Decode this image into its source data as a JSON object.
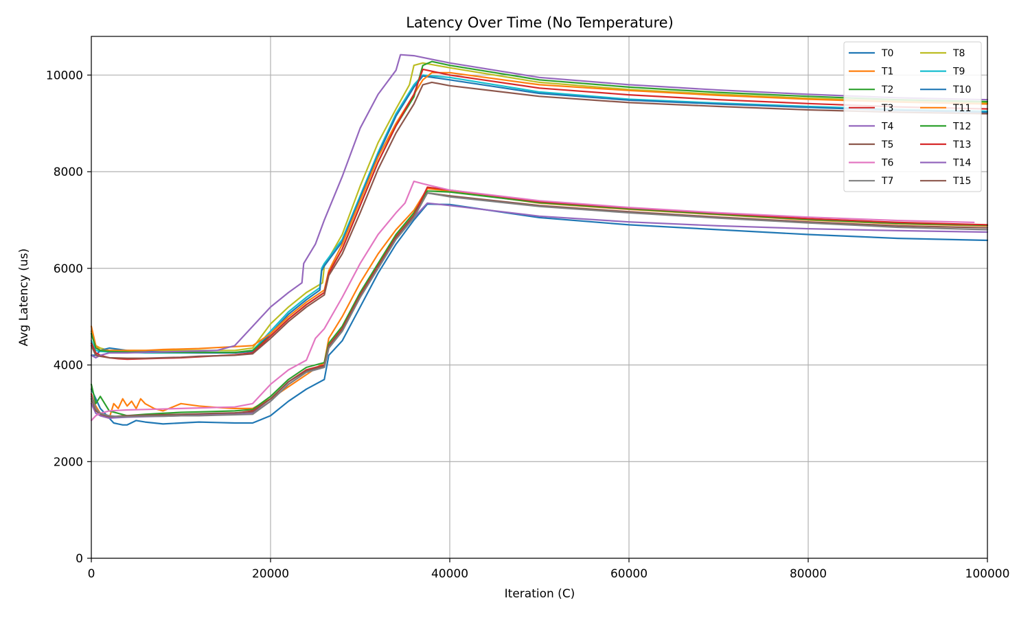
{
  "chart_data": {
    "type": "line",
    "title": "Latency Over Time (No Temperature)",
    "xlabel": "Iteration (C)",
    "ylabel": "Avg Latency (us)",
    "xlim": [
      0,
      100000
    ],
    "ylim": [
      0,
      10800
    ],
    "xticks": [
      0,
      20000,
      40000,
      60000,
      80000,
      100000
    ],
    "yticks": [
      0,
      2000,
      4000,
      6000,
      8000,
      10000
    ],
    "grid": true,
    "legend": {
      "placement": "upper-right",
      "columns": 2
    },
    "colors": {
      "T0": "#1f77b4",
      "T1": "#ff7f0e",
      "T2": "#2ca02c",
      "T3": "#d62728",
      "T4": "#9467bd",
      "T5": "#8c564b",
      "T6": "#e377c2",
      "T7": "#7f7f7f",
      "T8": "#bcbd22",
      "T9": "#17becf",
      "T10": "#1f77b4",
      "T11": "#ff7f0e",
      "T12": "#2ca02c",
      "T13": "#d62728",
      "T14": "#9467bd",
      "T15": "#8c564b"
    },
    "series": [
      {
        "name": "T0",
        "x": [
          0,
          1000,
          2000,
          2500,
          3000,
          3500,
          4000,
          5000,
          6000,
          8000,
          10000,
          12000,
          14000,
          16000,
          18000,
          20000,
          22000,
          24000,
          26000,
          26500,
          28000,
          30000,
          32000,
          34000,
          36000,
          37500,
          40000,
          50000,
          60000,
          70000,
          80000,
          90000,
          100000
        ],
        "y": [
          3500,
          3100,
          2900,
          2800,
          2780,
          2760,
          2760,
          2850,
          2820,
          2780,
          2800,
          2820,
          2810,
          2800,
          2800,
          2950,
          3250,
          3500,
          3700,
          4200,
          4500,
          5200,
          5900,
          6500,
          7000,
          7330,
          7320,
          7050,
          6900,
          6800,
          6700,
          6620,
          6580
        ]
      },
      {
        "name": "T1",
        "x": [
          0,
          1000,
          2000,
          2500,
          3000,
          3500,
          4000,
          4500,
          5000,
          5500,
          6000,
          7000,
          8000,
          10000,
          12000,
          14000,
          16000,
          18000,
          20000,
          22000,
          24000,
          26000,
          26500,
          28000,
          30000,
          32000,
          34000,
          36000,
          37500,
          40000,
          50000,
          60000,
          70000,
          80000,
          90000,
          100000
        ],
        "y": [
          3300,
          3000,
          2900,
          3200,
          3100,
          3300,
          3150,
          3250,
          3100,
          3300,
          3200,
          3100,
          3050,
          3200,
          3150,
          3120,
          3100,
          3100,
          3300,
          3550,
          3800,
          4050,
          4550,
          5000,
          5700,
          6300,
          6800,
          7200,
          7650,
          7600,
          7350,
          7220,
          7110,
          7000,
          6920,
          6880
        ]
      },
      {
        "name": "T2",
        "x": [
          0,
          500,
          1000,
          2000,
          3000,
          4000,
          6000,
          8000,
          10000,
          12000,
          14000,
          16000,
          18000,
          20000,
          22000,
          24000,
          26000,
          26500,
          28000,
          30000,
          32000,
          34000,
          36000,
          37500,
          40000,
          50000,
          60000,
          70000,
          80000,
          90000,
          100000
        ],
        "y": [
          3600,
          3200,
          3350,
          3050,
          3000,
          2950,
          2980,
          3000,
          3020,
          3030,
          3040,
          3050,
          3080,
          3350,
          3700,
          3950,
          4050,
          4450,
          4800,
          5500,
          6100,
          6700,
          7150,
          7600,
          7580,
          7360,
          7230,
          7120,
          7010,
          6930,
          6890
        ]
      },
      {
        "name": "T3",
        "x": [
          0,
          500,
          1000,
          2000,
          3000,
          4000,
          6000,
          8000,
          10000,
          12000,
          14000,
          16000,
          18000,
          20000,
          22000,
          24000,
          26000,
          26500,
          28000,
          30000,
          32000,
          34000,
          36000,
          37500,
          40000,
          50000,
          60000,
          70000,
          80000,
          90000,
          100000
        ],
        "y": [
          3400,
          3100,
          2950,
          2900,
          2920,
          2940,
          2950,
          2960,
          2970,
          2980,
          2990,
          3000,
          3050,
          3300,
          3650,
          3900,
          4000,
          4400,
          4750,
          5450,
          6050,
          6650,
          7100,
          7680,
          7620,
          7380,
          7250,
          7140,
          7030,
          6950,
          6900
        ]
      },
      {
        "name": "T4",
        "x": [
          0,
          500,
          1000,
          2000,
          3000,
          4000,
          6000,
          8000,
          10000,
          12000,
          14000,
          16000,
          18000,
          20000,
          22000,
          24000,
          26000,
          26500,
          28000,
          30000,
          32000,
          34000,
          36000,
          37500,
          40000,
          50000,
          60000,
          70000,
          80000,
          90000,
          100000
        ],
        "y": [
          3200,
          3000,
          2950,
          2900,
          2910,
          2920,
          2930,
          2940,
          2950,
          2960,
          2970,
          2980,
          3000,
          3250,
          3600,
          3850,
          3950,
          4350,
          4700,
          5400,
          6000,
          6600,
          7050,
          7350,
          7300,
          7080,
          6960,
          6880,
          6820,
          6780,
          6750
        ]
      },
      {
        "name": "T5",
        "x": [
          0,
          500,
          1000,
          2000,
          3000,
          4000,
          6000,
          8000,
          10000,
          12000,
          14000,
          16000,
          18000,
          20000,
          22000,
          24000,
          26000,
          26500,
          28000,
          30000,
          32000,
          34000,
          36000,
          37500,
          40000,
          50000,
          60000,
          70000,
          80000,
          90000,
          100000
        ],
        "y": [
          3300,
          3050,
          2980,
          2930,
          2940,
          2950,
          2960,
          2970,
          2980,
          2990,
          3000,
          3010,
          3030,
          3300,
          3650,
          3880,
          3980,
          4380,
          4720,
          5420,
          6020,
          6620,
          7080,
          7560,
          7500,
          7300,
          7170,
          7060,
          6960,
          6880,
          6840
        ]
      },
      {
        "name": "T6",
        "x": [
          0,
          500,
          1000,
          2000,
          3000,
          4000,
          6000,
          8000,
          10000,
          12000,
          14000,
          16000,
          18000,
          20000,
          22000,
          24000,
          25000,
          26000,
          28000,
          30000,
          32000,
          34000,
          35000,
          36000,
          37000,
          40000,
          50000,
          60000,
          70000,
          80000,
          90000,
          98500
        ],
        "y": [
          2850,
          2950,
          3000,
          3050,
          3060,
          3070,
          3080,
          3090,
          3100,
          3110,
          3120,
          3130,
          3200,
          3600,
          3900,
          4100,
          4550,
          4750,
          5400,
          6100,
          6700,
          7150,
          7350,
          7800,
          7750,
          7620,
          7400,
          7260,
          7150,
          7060,
          6990,
          6950
        ]
      },
      {
        "name": "T7",
        "x": [
          0,
          500,
          1000,
          2000,
          3000,
          4000,
          6000,
          8000,
          10000,
          12000,
          14000,
          16000,
          18000,
          20000,
          22000,
          24000,
          26000,
          26500,
          28000,
          30000,
          32000,
          34000,
          36000,
          37500,
          40000,
          50000,
          60000,
          70000,
          80000,
          90000,
          100000
        ],
        "y": [
          3350,
          3100,
          3000,
          2950,
          2930,
          2930,
          2940,
          2940,
          2950,
          2950,
          2960,
          2970,
          2980,
          3250,
          3600,
          3850,
          3950,
          4350,
          4700,
          5400,
          6000,
          6600,
          7050,
          7560,
          7480,
          7280,
          7150,
          7040,
          6940,
          6850,
          6800
        ]
      },
      {
        "name": "T8",
        "x": [
          0,
          500,
          1000,
          2000,
          4000,
          6000,
          8000,
          10000,
          12000,
          14000,
          16000,
          18000,
          20000,
          22000,
          24000,
          25800,
          26000,
          28000,
          30000,
          32000,
          34000,
          35500,
          36000,
          37000,
          40000,
          50000,
          60000,
          70000,
          80000,
          90000,
          100000
        ],
        "y": [
          4700,
          4400,
          4350,
          4300,
          4300,
          4300,
          4300,
          4300,
          4300,
          4300,
          4300,
          4350,
          4850,
          5200,
          5500,
          5700,
          6050,
          6700,
          7700,
          8600,
          9300,
          9800,
          10200,
          10250,
          10150,
          9850,
          9700,
          9600,
          9520,
          9460,
          9420
        ]
      },
      {
        "name": "T9",
        "x": [
          0,
          500,
          1000,
          2000,
          4000,
          6000,
          8000,
          10000,
          12000,
          14000,
          16000,
          18000,
          20000,
          22000,
          24000,
          25500,
          25700,
          26000,
          28000,
          30000,
          32000,
          34000,
          36000,
          37000,
          40000,
          50000,
          60000,
          70000,
          80000,
          90000,
          100000
        ],
        "y": [
          4500,
          4300,
          4280,
          4270,
          4260,
          4250,
          4250,
          4250,
          4250,
          4250,
          4250,
          4300,
          4700,
          5100,
          5400,
          5600,
          6000,
          6100,
          6600,
          7500,
          8400,
          9200,
          9800,
          10000,
          9950,
          9650,
          9500,
          9420,
          9350,
          9290,
          9250
        ]
      },
      {
        "name": "T10",
        "x": [
          0,
          500,
          1000,
          2000,
          4000,
          6000,
          8000,
          10000,
          12000,
          14000,
          16000,
          18000,
          20000,
          22000,
          24000,
          25500,
          25700,
          26000,
          28000,
          30000,
          32000,
          34000,
          36000,
          37000,
          40000,
          50000,
          60000,
          70000,
          80000,
          90000,
          100000
        ],
        "y": [
          4200,
          4200,
          4300,
          4350,
          4300,
          4280,
          4270,
          4260,
          4250,
          4250,
          4250,
          4280,
          4650,
          5050,
          5350,
          5550,
          5950,
          6050,
          6550,
          7450,
          8350,
          9150,
          9750,
          9980,
          9900,
          9620,
          9480,
          9400,
          9330,
          9270,
          9230
        ]
      },
      {
        "name": "T11",
        "x": [
          0,
          500,
          1000,
          2000,
          4000,
          6000,
          8000,
          10000,
          12000,
          14000,
          16000,
          18000,
          20000,
          22000,
          24000,
          26000,
          26500,
          28000,
          30000,
          32000,
          34000,
          36000,
          37000,
          38000,
          40000,
          50000,
          60000,
          70000,
          80000,
          90000,
          100000
        ],
        "y": [
          4800,
          4400,
          4300,
          4300,
          4300,
          4300,
          4320,
          4330,
          4340,
          4360,
          4380,
          4400,
          4650,
          5000,
          5300,
          5550,
          5950,
          6500,
          7400,
          8300,
          9000,
          9600,
          9900,
          10050,
          10050,
          9800,
          9680,
          9580,
          9500,
          9440,
          9400
        ]
      },
      {
        "name": "T12",
        "x": [
          0,
          500,
          1000,
          2000,
          4000,
          6000,
          8000,
          10000,
          12000,
          14000,
          16000,
          18000,
          20000,
          22000,
          24000,
          26000,
          26500,
          28000,
          30000,
          32000,
          34000,
          36000,
          37000,
          38000,
          40000,
          50000,
          60000,
          70000,
          80000,
          90000,
          100000
        ],
        "y": [
          4650,
          4350,
          4300,
          4280,
          4270,
          4260,
          4260,
          4260,
          4260,
          4260,
          4260,
          4300,
          4600,
          4950,
          5250,
          5500,
          5900,
          6400,
          7300,
          8200,
          8950,
          9550,
          10200,
          10280,
          10200,
          9900,
          9750,
          9640,
          9560,
          9490,
          9450
        ]
      },
      {
        "name": "T13",
        "x": [
          0,
          500,
          1000,
          2000,
          3000,
          4000,
          6000,
          8000,
          10000,
          12000,
          14000,
          16000,
          18000,
          20000,
          22000,
          24000,
          26000,
          26500,
          28000,
          30000,
          32000,
          34000,
          36000,
          37000,
          40000,
          50000,
          60000,
          70000,
          80000,
          90000,
          100000
        ],
        "y": [
          4450,
          4250,
          4200,
          4150,
          4130,
          4120,
          4130,
          4140,
          4150,
          4170,
          4190,
          4210,
          4250,
          4600,
          4950,
          5250,
          5500,
          5900,
          6400,
          7300,
          8200,
          8950,
          9600,
          10120,
          10000,
          9730,
          9590,
          9490,
          9410,
          9340,
          9300
        ]
      },
      {
        "name": "T14",
        "x": [
          0,
          500,
          1000,
          2000,
          4000,
          6000,
          8000,
          10000,
          12000,
          14000,
          16000,
          18000,
          20000,
          22000,
          23500,
          23700,
          25000,
          26000,
          28000,
          30000,
          32000,
          34000,
          34500,
          36000,
          40000,
          50000,
          60000,
          70000,
          80000,
          90000,
          100000
        ],
        "y": [
          4200,
          4150,
          4200,
          4250,
          4250,
          4260,
          4270,
          4280,
          4290,
          4300,
          4400,
          4800,
          5200,
          5500,
          5700,
          6100,
          6500,
          7000,
          7900,
          8900,
          9600,
          10100,
          10420,
          10400,
          10250,
          9950,
          9800,
          9690,
          9600,
          9530,
          9490
        ]
      },
      {
        "name": "T15",
        "x": [
          0,
          500,
          1000,
          2000,
          4000,
          6000,
          8000,
          10000,
          12000,
          14000,
          16000,
          18000,
          20000,
          22000,
          24000,
          26000,
          26500,
          28000,
          30000,
          32000,
          34000,
          36000,
          37000,
          38000,
          40000,
          50000,
          60000,
          70000,
          80000,
          90000,
          100000
        ],
        "y": [
          4400,
          4200,
          4180,
          4150,
          4140,
          4140,
          4150,
          4160,
          4180,
          4190,
          4200,
          4230,
          4550,
          4900,
          5200,
          5450,
          5850,
          6300,
          7150,
          8050,
          8800,
          9400,
          9800,
          9850,
          9780,
          9560,
          9430,
          9350,
          9280,
          9230,
          9200
        ]
      }
    ]
  }
}
